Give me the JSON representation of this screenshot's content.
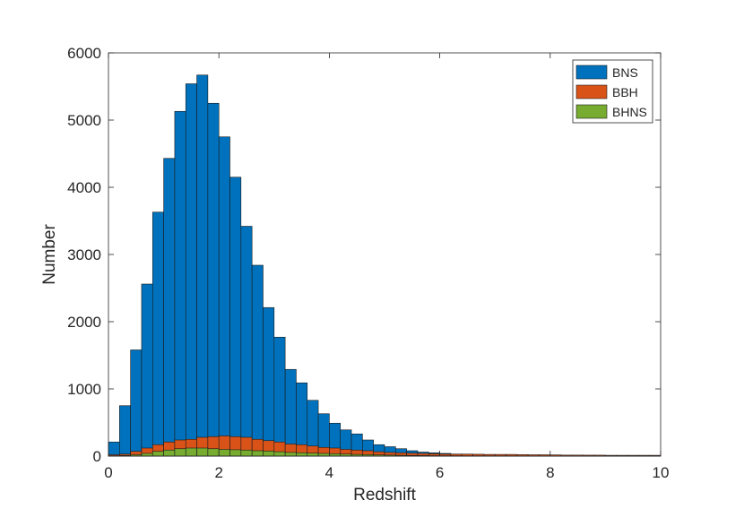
{
  "chart_data": {
    "type": "bar",
    "stacked": true,
    "title": "",
    "xlabel": "Redshift",
    "ylabel": "Number",
    "xlim": [
      0,
      10
    ],
    "ylim": [
      0,
      6000
    ],
    "xticks": [
      0,
      2,
      4,
      6,
      8,
      10
    ],
    "yticks": [
      0,
      1000,
      2000,
      3000,
      4000,
      5000,
      6000
    ],
    "grid": false,
    "legend_position": "top-right",
    "bin_width": 0.2,
    "bin_starts": [
      0.0,
      0.2,
      0.4,
      0.6,
      0.8,
      1.0,
      1.2,
      1.4,
      1.6,
      1.8,
      2.0,
      2.2,
      2.4,
      2.6,
      2.8,
      3.0,
      3.2,
      3.4,
      3.6,
      3.8,
      4.0,
      4.2,
      4.4,
      4.6,
      4.8,
      5.0,
      5.2,
      5.4,
      5.6,
      5.8,
      6.0,
      6.2,
      6.4,
      6.6,
      6.8,
      7.0,
      7.2,
      7.4,
      7.6,
      7.8,
      8.0,
      8.2,
      8.4,
      8.6,
      8.8,
      9.0,
      9.2,
      9.4,
      9.6,
      9.8
    ],
    "series": [
      {
        "name": "BNS",
        "color": "#0072BD",
        "values": [
          210,
          750,
          1580,
          2560,
          3630,
          4430,
          5130,
          5540,
          5670,
          5250,
          4750,
          4150,
          3420,
          2840,
          2210,
          1770,
          1290,
          1090,
          830,
          630,
          490,
          390,
          330,
          240,
          170,
          140,
          110,
          80,
          60,
          50,
          40,
          30,
          25,
          22,
          20,
          15,
          12,
          10,
          8,
          6,
          5,
          5,
          4,
          4,
          3,
          3,
          3,
          2,
          2,
          2
        ]
      },
      {
        "name": "BBH",
        "color": "#D95319",
        "values": [
          20,
          30,
          70,
          120,
          170,
          210,
          240,
          250,
          280,
          290,
          300,
          290,
          280,
          250,
          230,
          210,
          180,
          170,
          150,
          130,
          120,
          100,
          90,
          80,
          65,
          55,
          50,
          45,
          40,
          35,
          30,
          30,
          30,
          28,
          25,
          25,
          25,
          22,
          20,
          20,
          18,
          15,
          15,
          14,
          14,
          12,
          12,
          12,
          12,
          12
        ]
      },
      {
        "name": "BHNS",
        "color": "#77AC30",
        "values": [
          5,
          10,
          20,
          40,
          70,
          90,
          110,
          120,
          120,
          110,
          100,
          95,
          90,
          80,
          75,
          65,
          55,
          50,
          45,
          40,
          35,
          30,
          25,
          22,
          18,
          15,
          12,
          10,
          8,
          6,
          5,
          5,
          4,
          4,
          3,
          3,
          3,
          2,
          2,
          2,
          2,
          2,
          1,
          1,
          1,
          1,
          1,
          1,
          1,
          1
        ]
      }
    ]
  }
}
